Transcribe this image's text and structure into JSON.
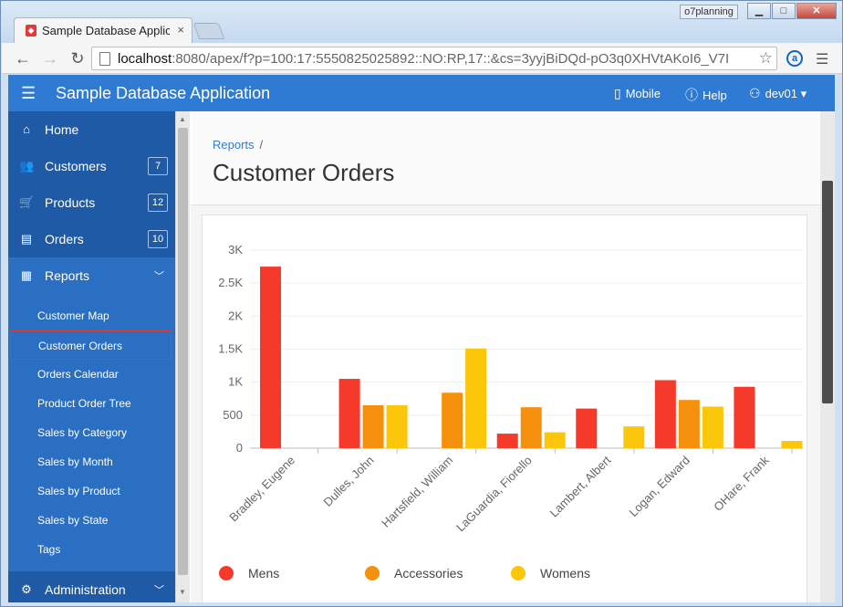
{
  "browser": {
    "tab_title": "Sample Database Applicat",
    "tab_close": "×",
    "profile_label": "o7planning",
    "window_controls": [
      "▁",
      "□",
      "✕"
    ],
    "url_host": "localhost",
    "url_rest": ":8080/apex/f?p=100:17:5550825025892::NO:RP,17::&cs=3yyjBiDQd-pO3q0XHVtAKoI6_V7I",
    "ext_letter": "a"
  },
  "app": {
    "title": "Sample Database Application",
    "nav": {
      "mobile": "Mobile",
      "help": "Help",
      "user": "dev01"
    }
  },
  "sidebar": {
    "items": [
      {
        "label": "Home",
        "icon": "home-icon"
      },
      {
        "label": "Customers",
        "icon": "users-icon",
        "badge": "7"
      },
      {
        "label": "Products",
        "icon": "cart-icon",
        "badge": "12"
      },
      {
        "label": "Orders",
        "icon": "list-icon",
        "badge": "10"
      },
      {
        "label": "Reports",
        "icon": "table-icon"
      }
    ],
    "subitems": [
      "Customer Map",
      "Customer Orders",
      "Orders Calendar",
      "Product Order Tree",
      "Sales by Category",
      "Sales by Month",
      "Sales by Product",
      "Sales by State",
      "Tags"
    ],
    "admin_label": "Administration"
  },
  "page": {
    "breadcrumb": "Reports",
    "breadcrumb_sep": "/",
    "title": "Customer Orders"
  },
  "chart_data": {
    "type": "bar",
    "categories": [
      "Bradley, Eugene",
      "Dulles, John",
      "Hartsfield, William",
      "LaGuardia, Fiorello",
      "Lambert, Albert",
      "Logan, Edward",
      "OHare, Frank"
    ],
    "series": [
      {
        "name": "Mens",
        "color": "#f53a2c",
        "values": [
          2750,
          1050,
          0,
          220,
          600,
          1030,
          930
        ]
      },
      {
        "name": "Accessories",
        "color": "#f5900c",
        "values": [
          0,
          650,
          840,
          620,
          0,
          730,
          0
        ]
      },
      {
        "name": "Womens",
        "color": "#fcc60a",
        "values": [
          0,
          650,
          1510,
          240,
          330,
          630,
          110
        ]
      }
    ],
    "ylim": [
      0,
      3000
    ],
    "yticks": [
      0,
      500,
      1000,
      1500,
      2000,
      2500,
      3000
    ],
    "ytick_labels": [
      "0",
      "500",
      "1K",
      "1.5K",
      "2K",
      "2.5K",
      "3K"
    ],
    "grid": true,
    "legend_position": "bottom-left"
  }
}
